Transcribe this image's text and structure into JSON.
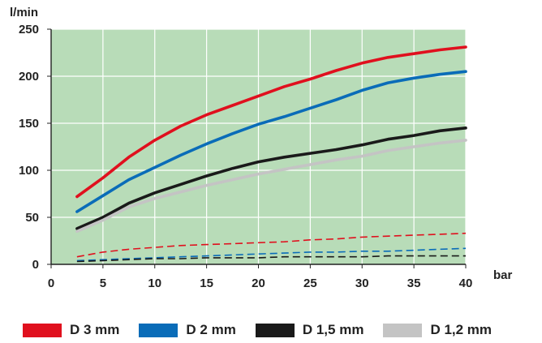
{
  "chart_data": {
    "type": "line",
    "title": "",
    "xlabel": "bar",
    "ylabel": "l/min",
    "xlim": [
      0,
      40
    ],
    "ylim": [
      0,
      250
    ],
    "x_ticks": [
      "0",
      "5",
      "10",
      "15",
      "20",
      "25",
      "30",
      "35",
      "40"
    ],
    "y_ticks": [
      "0",
      "50",
      "100",
      "150",
      "200",
      "250"
    ],
    "grid": true,
    "background_color": "#b8dcb8",
    "grid_color": "#ffffff",
    "legend_position": "bottom",
    "x": [
      2.5,
      5,
      7.5,
      10,
      12.5,
      15,
      17.5,
      20,
      22.5,
      25,
      27.5,
      30,
      32.5,
      35,
      37.5,
      40
    ],
    "series": [
      {
        "name": "D 3 mm",
        "color": "#e0101e",
        "dashed": false,
        "values": [
          72,
          92,
          114,
          132,
          147,
          159,
          169,
          179,
          189,
          197,
          206,
          214,
          220,
          224,
          228,
          231
        ]
      },
      {
        "name": "D 2 mm",
        "color": "#0a6cb8",
        "dashed": false,
        "values": [
          56,
          73,
          90,
          103,
          116,
          128,
          139,
          149,
          157,
          166,
          175,
          185,
          193,
          198,
          202,
          205
        ]
      },
      {
        "name": "D 1,5 mm",
        "color": "#1a1a1a",
        "dashed": false,
        "values": [
          38,
          50,
          65,
          76,
          85,
          94,
          102,
          109,
          114,
          118,
          122,
          127,
          133,
          137,
          142,
          145
        ]
      },
      {
        "name": "D 1,2 mm",
        "color": "#c4c4c4",
        "dashed": false,
        "values": [
          35,
          47,
          61,
          70,
          77,
          84,
          90,
          96,
          101,
          106,
          111,
          115,
          121,
          125,
          129,
          132
        ]
      },
      {
        "name": "D 3 mm",
        "color": "#e0101e",
        "dashed": true,
        "values": [
          8,
          13,
          16,
          18,
          20,
          21,
          22,
          23,
          24,
          26,
          27,
          29,
          30,
          31,
          32,
          33
        ]
      },
      {
        "name": "D 2 mm",
        "color": "#0a6cb8",
        "dashed": true,
        "values": [
          4,
          5,
          6,
          7,
          8,
          9,
          10,
          11,
          12,
          13,
          13,
          14,
          14,
          15,
          16,
          17
        ]
      },
      {
        "name": "D 1,5 mm",
        "color": "#1a1a1a",
        "dashed": true,
        "values": [
          3,
          4,
          5,
          6,
          6,
          7,
          7,
          7,
          8,
          8,
          8,
          8,
          9,
          9,
          9,
          9
        ]
      }
    ]
  },
  "legend": [
    {
      "label": "D 3 mm",
      "color": "#e0101e"
    },
    {
      "label": "D 2 mm",
      "color": "#0a6cb8"
    },
    {
      "label": "D 1,5 mm",
      "color": "#1a1a1a"
    },
    {
      "label": "D 1,2 mm",
      "color": "#c4c4c4"
    }
  ]
}
